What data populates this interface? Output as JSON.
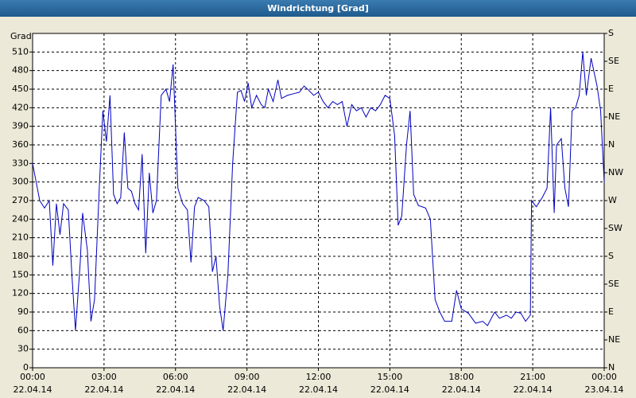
{
  "chart_data": {
    "type": "line",
    "title": "Windrichtung [Grad]",
    "y_label": "Grad",
    "series": [
      {
        "name": "Windrichtung",
        "color": "#0000c0",
        "x": [
          0.0,
          0.15,
          0.3,
          0.5,
          0.7,
          0.85,
          1.0,
          1.15,
          1.3,
          1.5,
          1.65,
          1.8,
          2.0,
          2.1,
          2.3,
          2.45,
          2.6,
          2.8,
          2.95,
          3.1,
          3.25,
          3.4,
          3.55,
          3.7,
          3.85,
          4.0,
          4.15,
          4.3,
          4.45,
          4.6,
          4.75,
          4.9,
          5.05,
          5.2,
          5.4,
          5.6,
          5.75,
          5.9,
          6.1,
          6.3,
          6.5,
          6.65,
          6.8,
          6.95,
          7.2,
          7.4,
          7.55,
          7.7,
          7.85,
          8.0,
          8.2,
          8.4,
          8.6,
          8.75,
          8.9,
          9.05,
          9.2,
          9.4,
          9.6,
          9.75,
          9.9,
          10.1,
          10.3,
          10.45,
          10.7,
          11.0,
          11.2,
          11.4,
          11.6,
          11.8,
          12.0,
          12.2,
          12.4,
          12.6,
          12.8,
          13.0,
          13.2,
          13.4,
          13.6,
          13.8,
          14.0,
          14.2,
          14.4,
          14.6,
          14.8,
          15.0,
          15.2,
          15.35,
          15.5,
          15.7,
          15.85,
          16.0,
          16.2,
          16.5,
          16.7,
          16.9,
          17.1,
          17.3,
          17.6,
          17.8,
          18.0,
          18.3,
          18.6,
          18.9,
          19.1,
          19.4,
          19.6,
          19.9,
          20.1,
          20.3,
          20.5,
          20.7,
          20.9,
          20.95,
          21.15,
          21.4,
          21.6,
          21.75,
          21.9,
          22.0,
          22.2,
          22.35,
          22.5,
          22.65,
          22.8,
          22.95,
          23.1,
          23.25,
          23.45,
          23.7,
          23.85,
          24.0
        ],
        "values": [
          330,
          300,
          270,
          258,
          270,
          165,
          265,
          215,
          265,
          255,
          150,
          60,
          170,
          250,
          190,
          75,
          110,
          290,
          415,
          365,
          440,
          280,
          265,
          275,
          380,
          290,
          285,
          265,
          255,
          345,
          185,
          315,
          250,
          270,
          440,
          450,
          430,
          490,
          290,
          265,
          255,
          170,
          260,
          275,
          270,
          260,
          155,
          180,
          100,
          60,
          150,
          330,
          445,
          448,
          430,
          460,
          420,
          440,
          425,
          420,
          450,
          430,
          465,
          435,
          440,
          443,
          445,
          455,
          448,
          440,
          445,
          430,
          420,
          430,
          425,
          430,
          390,
          425,
          415,
          420,
          405,
          420,
          415,
          425,
          440,
          435,
          375,
          230,
          245,
          360,
          415,
          280,
          262,
          258,
          240,
          110,
          90,
          75,
          75,
          125,
          95,
          88,
          72,
          75,
          68,
          90,
          80,
          85,
          80,
          90,
          88,
          75,
          85,
          270,
          260,
          275,
          290,
          420,
          250,
          360,
          370,
          290,
          260,
          415,
          420,
          440,
          510,
          440,
          500,
          455,
          415,
          300
        ]
      }
    ],
    "xlim": [
      0,
      24
    ],
    "ylim": [
      0,
      540
    ],
    "y2lim": [
      0,
      540
    ],
    "xticks": [
      {
        "value": 0,
        "label": "00:00",
        "date": "22.04.14"
      },
      {
        "value": 3,
        "label": "03:00",
        "date": "22.04.14"
      },
      {
        "value": 6,
        "label": "06:00",
        "date": "22.04.14"
      },
      {
        "value": 9,
        "label": "09:00",
        "date": "22.04.14"
      },
      {
        "value": 12,
        "label": "12:00",
        "date": "22.04.14"
      },
      {
        "value": 15,
        "label": "15:00",
        "date": "22.04.14"
      },
      {
        "value": 18,
        "label": "18:00",
        "date": "22.04.14"
      },
      {
        "value": 21,
        "label": "21:00",
        "date": "22.04.14"
      },
      {
        "value": 24,
        "label": "00:00",
        "date": "23.04.14"
      }
    ],
    "yticks": [
      0,
      30,
      60,
      90,
      120,
      150,
      180,
      210,
      240,
      270,
      300,
      330,
      360,
      390,
      420,
      450,
      480,
      510
    ],
    "y2ticks": [
      {
        "value": 0,
        "label": "N"
      },
      {
        "value": 45,
        "label": "NE"
      },
      {
        "value": 90,
        "label": "E"
      },
      {
        "value": 135,
        "label": "SE"
      },
      {
        "value": 180,
        "label": "S"
      },
      {
        "value": 225,
        "label": "SW"
      },
      {
        "value": 270,
        "label": "W"
      },
      {
        "value": 315,
        "label": "NW"
      },
      {
        "value": 360,
        "label": "N"
      },
      {
        "value": 405,
        "label": "NE"
      },
      {
        "value": 450,
        "label": "E"
      },
      {
        "value": 495,
        "label": "SE"
      },
      {
        "value": 540,
        "label": "S"
      }
    ],
    "grid": true
  }
}
